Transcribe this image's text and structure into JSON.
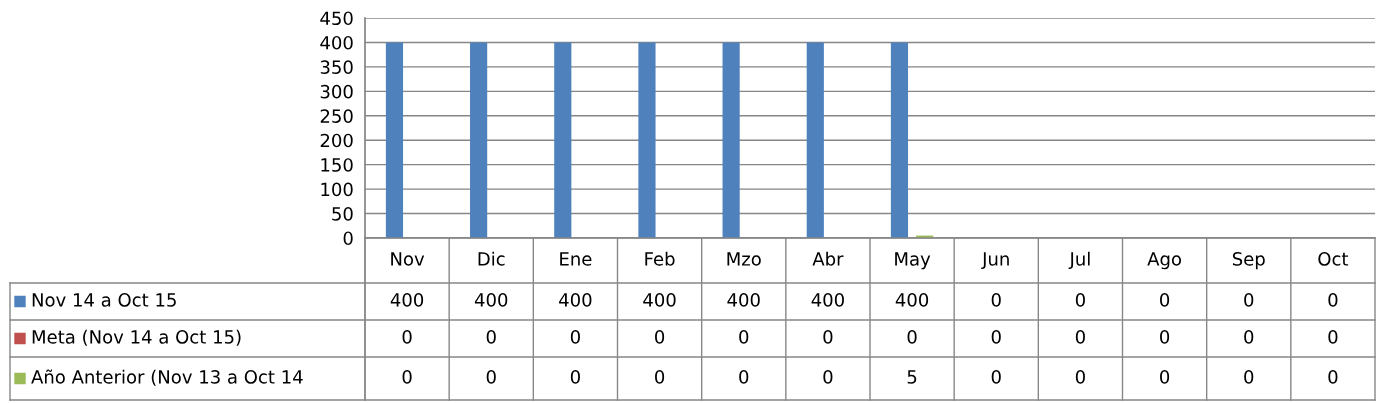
{
  "chart_data": {
    "type": "bar",
    "categories": [
      "Nov",
      "Dic",
      "Ene",
      "Feb",
      "Mzo",
      "Abr",
      "May",
      "Jun",
      "Jul",
      "Ago",
      "Sep",
      "Oct"
    ],
    "series": [
      {
        "name": "Nov 14 a Oct 15",
        "color": "#4f81bd",
        "values": [
          400,
          400,
          400,
          400,
          400,
          400,
          400,
          0,
          0,
          0,
          0,
          0
        ]
      },
      {
        "name": "Meta (Nov 14 a Oct 15)",
        "color": "#c0504d",
        "values": [
          0,
          0,
          0,
          0,
          0,
          0,
          0,
          0,
          0,
          0,
          0,
          0
        ]
      },
      {
        "name": "Año Anterior (Nov 13 a Oct 14",
        "color": "#9bbb59",
        "values": [
          0,
          0,
          0,
          0,
          0,
          0,
          5,
          0,
          0,
          0,
          0,
          0
        ]
      }
    ],
    "ylim": [
      0,
      450
    ],
    "yticks": [
      0,
      50,
      100,
      150,
      200,
      250,
      300,
      350,
      400,
      450
    ],
    "grid": "y",
    "data_labels": true,
    "legend": "bottom"
  }
}
